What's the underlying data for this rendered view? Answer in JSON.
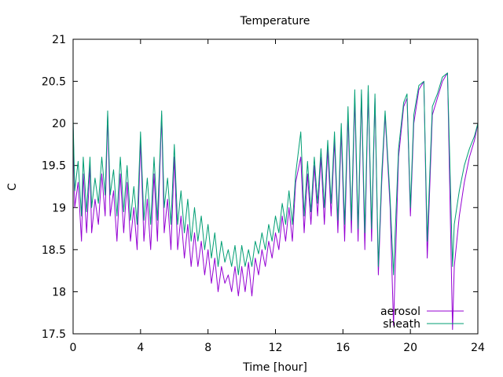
{
  "chart_data": {
    "type": "line",
    "title": "Temperature",
    "xlabel": "Time [hour]",
    "ylabel": "C",
    "xlim": [
      0,
      24
    ],
    "ylim": [
      17.5,
      21
    ],
    "grid": false,
    "legend_position": "bottom-right",
    "x_ticks": [
      "0",
      "4",
      "8",
      "12",
      "16",
      "20",
      "24"
    ],
    "y_ticks": [
      "17.5",
      "18",
      "18.5",
      "19",
      "19.5",
      "20",
      "20.5",
      "21"
    ],
    "series": [
      {
        "name": "aerosol",
        "color": "#9400d3",
        "x": [
          0,
          0.1,
          0.3,
          0.5,
          0.6,
          0.8,
          1.0,
          1.1,
          1.3,
          1.5,
          1.7,
          1.9,
          2.05,
          2.2,
          2.4,
          2.6,
          2.8,
          3.0,
          3.2,
          3.4,
          3.6,
          3.8,
          4.0,
          4.2,
          4.4,
          4.6,
          4.8,
          5.0,
          5.25,
          5.4,
          5.6,
          5.8,
          6.0,
          6.2,
          6.4,
          6.6,
          6.8,
          7.0,
          7.2,
          7.4,
          7.6,
          7.8,
          8.0,
          8.2,
          8.4,
          8.6,
          8.8,
          9.0,
          9.2,
          9.4,
          9.6,
          9.8,
          10.0,
          10.2,
          10.4,
          10.6,
          10.8,
          11.0,
          11.2,
          11.4,
          11.6,
          11.8,
          12.0,
          12.2,
          12.4,
          12.6,
          12.8,
          13.0,
          13.2,
          13.5,
          13.7,
          13.9,
          14.1,
          14.3,
          14.5,
          14.7,
          14.9,
          15.1,
          15.3,
          15.5,
          15.7,
          15.9,
          16.1,
          16.3,
          16.5,
          16.7,
          16.9,
          17.1,
          17.3,
          17.5,
          17.7,
          17.9,
          18.1,
          18.3,
          18.5,
          18.8,
          19.0,
          19.3,
          19.6,
          19.8,
          20.0,
          20.2,
          20.5,
          20.8,
          21.0,
          21.3,
          21.6,
          21.9,
          22.2,
          22.5,
          22.6,
          22.9,
          23.2,
          23.5,
          23.8,
          24.0
        ],
        "values": [
          20.0,
          19.0,
          19.3,
          18.6,
          19.4,
          18.7,
          19.5,
          18.7,
          19.1,
          18.8,
          19.4,
          18.9,
          20.1,
          18.9,
          19.2,
          18.6,
          19.4,
          18.7,
          19.3,
          18.6,
          19.0,
          18.5,
          19.8,
          18.6,
          19.1,
          18.5,
          19.4,
          18.6,
          20.1,
          18.7,
          19.1,
          18.5,
          19.6,
          18.5,
          18.9,
          18.4,
          18.8,
          18.3,
          18.7,
          18.3,
          18.6,
          18.2,
          18.5,
          18.1,
          18.4,
          18.0,
          18.3,
          18.1,
          18.2,
          18.0,
          18.3,
          17.95,
          18.3,
          18.0,
          18.35,
          17.95,
          18.4,
          18.2,
          18.5,
          18.3,
          18.6,
          18.4,
          18.7,
          18.5,
          18.9,
          18.6,
          19.0,
          18.6,
          19.3,
          19.6,
          18.7,
          19.4,
          18.8,
          19.5,
          18.9,
          19.6,
          18.8,
          19.7,
          18.9,
          19.8,
          18.7,
          19.9,
          18.6,
          20.1,
          18.7,
          20.3,
          18.6,
          20.35,
          18.5,
          20.4,
          18.6,
          20.3,
          18.2,
          19.3,
          20.1,
          19.0,
          17.6,
          19.6,
          20.2,
          20.3,
          18.9,
          20.0,
          20.4,
          20.5,
          18.4,
          20.1,
          20.3,
          20.5,
          20.6,
          17.55,
          18.3,
          18.9,
          19.3,
          19.6,
          19.8,
          20.0
        ]
      },
      {
        "name": "sheath",
        "color": "#009e73",
        "x": [
          0,
          0.1,
          0.3,
          0.5,
          0.6,
          0.8,
          1.0,
          1.1,
          1.3,
          1.5,
          1.7,
          1.9,
          2.05,
          2.2,
          2.4,
          2.6,
          2.8,
          3.0,
          3.2,
          3.4,
          3.6,
          3.8,
          4.0,
          4.2,
          4.4,
          4.6,
          4.8,
          5.0,
          5.25,
          5.4,
          5.6,
          5.8,
          6.0,
          6.2,
          6.4,
          6.6,
          6.8,
          7.0,
          7.2,
          7.4,
          7.6,
          7.8,
          8.0,
          8.2,
          8.4,
          8.6,
          8.8,
          9.0,
          9.2,
          9.4,
          9.6,
          9.8,
          10.0,
          10.2,
          10.4,
          10.6,
          10.8,
          11.0,
          11.2,
          11.4,
          11.6,
          11.8,
          12.0,
          12.2,
          12.4,
          12.6,
          12.8,
          13.0,
          13.2,
          13.5,
          13.7,
          13.9,
          14.1,
          14.3,
          14.5,
          14.7,
          14.9,
          15.1,
          15.3,
          15.5,
          15.7,
          15.9,
          16.1,
          16.3,
          16.5,
          16.7,
          16.9,
          17.1,
          17.3,
          17.5,
          17.7,
          17.9,
          18.1,
          18.3,
          18.5,
          18.8,
          19.0,
          19.3,
          19.6,
          19.8,
          20.0,
          20.2,
          20.5,
          20.8,
          21.0,
          21.3,
          21.6,
          21.9,
          22.2,
          22.5,
          22.6,
          22.9,
          23.2,
          23.5,
          23.8,
          24.0
        ],
        "values": [
          20.05,
          19.2,
          19.55,
          18.9,
          19.6,
          18.95,
          19.6,
          19.0,
          19.35,
          19.05,
          19.6,
          19.15,
          20.15,
          19.15,
          19.45,
          18.9,
          19.6,
          18.95,
          19.5,
          18.85,
          19.25,
          18.8,
          19.9,
          18.85,
          19.35,
          18.8,
          19.6,
          18.85,
          20.15,
          19.0,
          19.35,
          18.8,
          19.75,
          18.8,
          19.2,
          18.7,
          19.1,
          18.6,
          19.0,
          18.6,
          18.9,
          18.5,
          18.8,
          18.4,
          18.7,
          18.3,
          18.6,
          18.35,
          18.5,
          18.3,
          18.55,
          18.2,
          18.55,
          18.3,
          18.5,
          18.3,
          18.6,
          18.45,
          18.7,
          18.5,
          18.8,
          18.6,
          18.9,
          18.7,
          19.05,
          18.8,
          19.2,
          18.8,
          19.4,
          19.9,
          18.9,
          19.55,
          18.95,
          19.6,
          19.05,
          19.7,
          19.0,
          19.8,
          19.05,
          19.9,
          18.85,
          20.0,
          18.8,
          20.2,
          18.85,
          20.4,
          18.75,
          20.4,
          18.7,
          20.45,
          18.75,
          20.35,
          18.3,
          19.4,
          20.15,
          19.1,
          18.2,
          19.7,
          20.25,
          20.35,
          19.0,
          20.1,
          20.45,
          20.5,
          18.6,
          20.2,
          20.35,
          20.55,
          20.6,
          18.3,
          18.8,
          19.2,
          19.5,
          19.7,
          19.85,
          20.0
        ]
      }
    ]
  }
}
